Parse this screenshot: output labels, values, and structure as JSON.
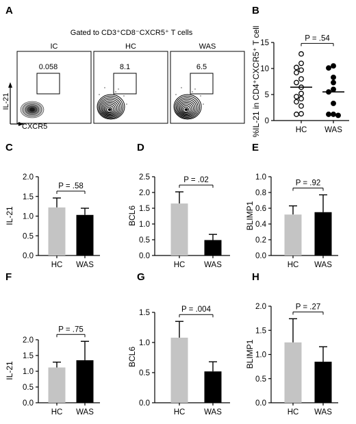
{
  "figure": {
    "flow": {
      "panel_label": "A",
      "gate_title": "Gated to CD3⁺CD8⁻CXCR5⁺ T cells",
      "y_axis_label": "IL-21",
      "x_axis_label": "CXCR5",
      "samples": [
        {
          "name": "IC",
          "gate_percent": "0.058"
        },
        {
          "name": "HC",
          "gate_percent": "8.1"
        },
        {
          "name": "WAS",
          "gate_percent": "6.5"
        }
      ]
    }
  },
  "chart_data": [
    {
      "panel": "B",
      "type": "scatter",
      "categories": [
        "HC",
        "WAS"
      ],
      "ylabel": "%IL-21 in CD4⁺CXCR5⁺ T cell",
      "ylim": [
        0,
        15
      ],
      "yticks": [
        0,
        5,
        10,
        15
      ],
      "pvalue": "P = .54",
      "groups": [
        {
          "name": "HC",
          "marker": "open-circle",
          "mean": 6.4,
          "values": [
            12.8,
            11.0,
            10.2,
            9.7,
            9.2,
            8.0,
            7.3,
            6.4,
            5.2,
            4.6,
            4.2,
            3.6,
            2.8,
            1.3,
            1.2
          ]
        },
        {
          "name": "WAS",
          "marker": "filled-circle",
          "mean": 5.5,
          "values": [
            10.5,
            10.1,
            8.3,
            7.3,
            6.0,
            5.5,
            3.3,
            1.2,
            1.2,
            1.0
          ]
        }
      ]
    },
    {
      "panel": "C",
      "type": "bar",
      "categories": [
        "HC",
        "WAS"
      ],
      "ylabel": "IL-21",
      "values": [
        1.22,
        1.03
      ],
      "errors": [
        0.24,
        0.17
      ],
      "ylim": [
        0,
        2.0
      ],
      "yticks": [
        "0.0",
        "0.5",
        "1.0",
        "1.5",
        "2.0"
      ],
      "pvalue": "P = .58",
      "colors": [
        "#c4c4c4",
        "#000000"
      ]
    },
    {
      "panel": "D",
      "type": "bar",
      "categories": [
        "HC",
        "WAS"
      ],
      "ylabel": "BCL6",
      "values": [
        1.65,
        0.49
      ],
      "errors": [
        0.37,
        0.18
      ],
      "ylim": [
        0,
        2.5
      ],
      "yticks": [
        "0.0",
        "0.5",
        "1.0",
        "1.5",
        "2.0",
        "2.5"
      ],
      "pvalue": "P = .02",
      "colors": [
        "#c4c4c4",
        "#000000"
      ]
    },
    {
      "panel": "E",
      "type": "bar",
      "categories": [
        "HC",
        "WAS"
      ],
      "ylabel": "BLIMP1",
      "values": [
        0.52,
        0.55
      ],
      "errors": [
        0.11,
        0.22
      ],
      "ylim": [
        0,
        1.0
      ],
      "yticks": [
        "0.0",
        "0.2",
        "0.4",
        "0.6",
        "0.8",
        "1.0"
      ],
      "pvalue": "P = .92",
      "colors": [
        "#c4c4c4",
        "#000000"
      ]
    },
    {
      "panel": "F",
      "type": "bar",
      "categories": [
        "HC",
        "WAS"
      ],
      "ylabel": "IL-21",
      "values": [
        1.12,
        1.35
      ],
      "errors": [
        0.17,
        0.6
      ],
      "ylim": [
        0,
        2.0
      ],
      "yticks": [
        "0.0",
        "0.5",
        "1.0",
        "1.5",
        "2.0"
      ],
      "pvalue": "P = .75",
      "colors": [
        "#c4c4c4",
        "#000000"
      ]
    },
    {
      "panel": "G",
      "type": "bar",
      "categories": [
        "HC",
        "WAS"
      ],
      "ylabel": "BCL6",
      "values": [
        1.08,
        0.52
      ],
      "errors": [
        0.27,
        0.16
      ],
      "ylim": [
        0,
        1.5
      ],
      "yticks": [
        "0.0",
        "0.5",
        "1.0",
        "1.5"
      ],
      "pvalue": "P = .004",
      "colors": [
        "#c4c4c4",
        "#000000"
      ]
    },
    {
      "panel": "H",
      "type": "bar",
      "categories": [
        "HC",
        "WAS"
      ],
      "ylabel": "BLIMP1",
      "values": [
        1.25,
        0.85
      ],
      "errors": [
        0.49,
        0.31
      ],
      "ylim": [
        0,
        2.0
      ],
      "yticks": [
        "0.0",
        "0.5",
        "1.0",
        "1.5",
        "2.0"
      ],
      "pvalue": "P = .27",
      "colors": [
        "#c4c4c4",
        "#000000"
      ]
    }
  ]
}
